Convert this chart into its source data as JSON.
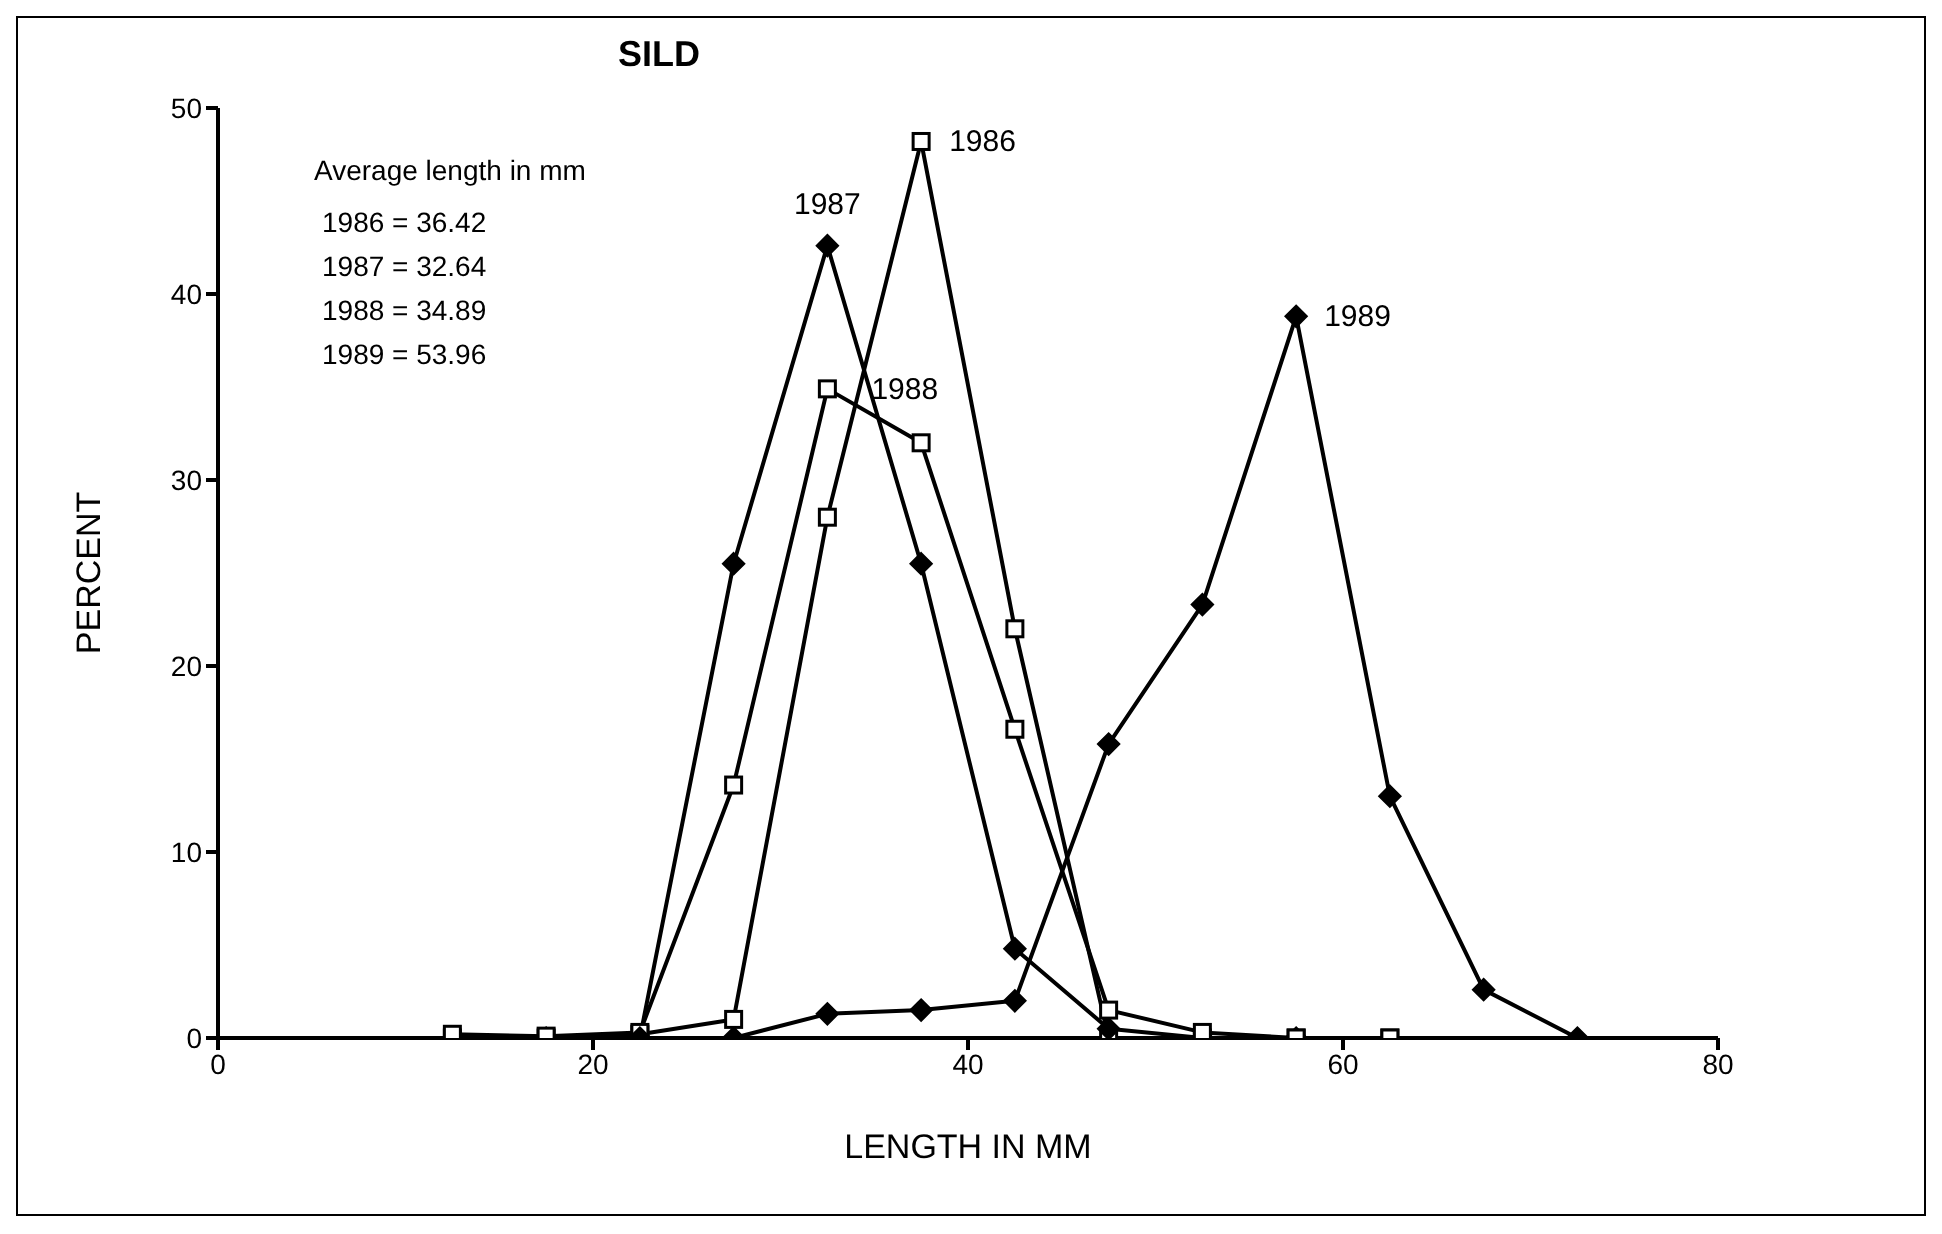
{
  "chart_data": {
    "type": "line",
    "title": "SILD",
    "xlabel": "LENGTH IN MM",
    "ylabel": "PERCENT",
    "x": [
      12.5,
      17.5,
      22.5,
      27.5,
      32.5,
      37.5,
      42.5,
      47.5,
      52.5,
      57.5,
      62.5,
      67.5,
      72.5
    ],
    "series": [
      {
        "name": "1986",
        "color": "#000000",
        "marker": "square",
        "values": [
          0,
          0,
          0.2,
          1,
          28,
          48.2,
          22,
          0,
          0,
          0,
          0,
          null,
          null
        ]
      },
      {
        "name": "1987",
        "color": "#000000",
        "marker": "diamond",
        "values": [
          null,
          0,
          0,
          25.5,
          42.6,
          25.5,
          4.8,
          0.5,
          0,
          0,
          null,
          null,
          null
        ]
      },
      {
        "name": "1988",
        "color": "#000000",
        "marker": "square",
        "values": [
          0.2,
          0.1,
          0.3,
          13.6,
          34.9,
          32,
          16.6,
          1.5,
          0.3,
          0,
          0,
          null,
          null
        ]
      },
      {
        "name": "1989",
        "color": "#000000",
        "marker": "diamond",
        "values": [
          null,
          null,
          0,
          0,
          1.3,
          1.5,
          2,
          15.8,
          23.3,
          38.8,
          13,
          2.6,
          0
        ]
      }
    ],
    "xlim": [
      0,
      80
    ],
    "xticks": [
      0,
      20,
      40,
      60,
      80
    ],
    "ylim": [
      0,
      50
    ],
    "yticks": [
      0,
      10,
      20,
      30,
      40,
      50
    ],
    "grid": false,
    "legend": false,
    "line_style": "solid",
    "annotations": [
      "Average length in mm",
      "1986 = 36.42",
      "1987 = 32.64",
      "1988 = 34.89",
      "1989 = 53.96"
    ]
  }
}
